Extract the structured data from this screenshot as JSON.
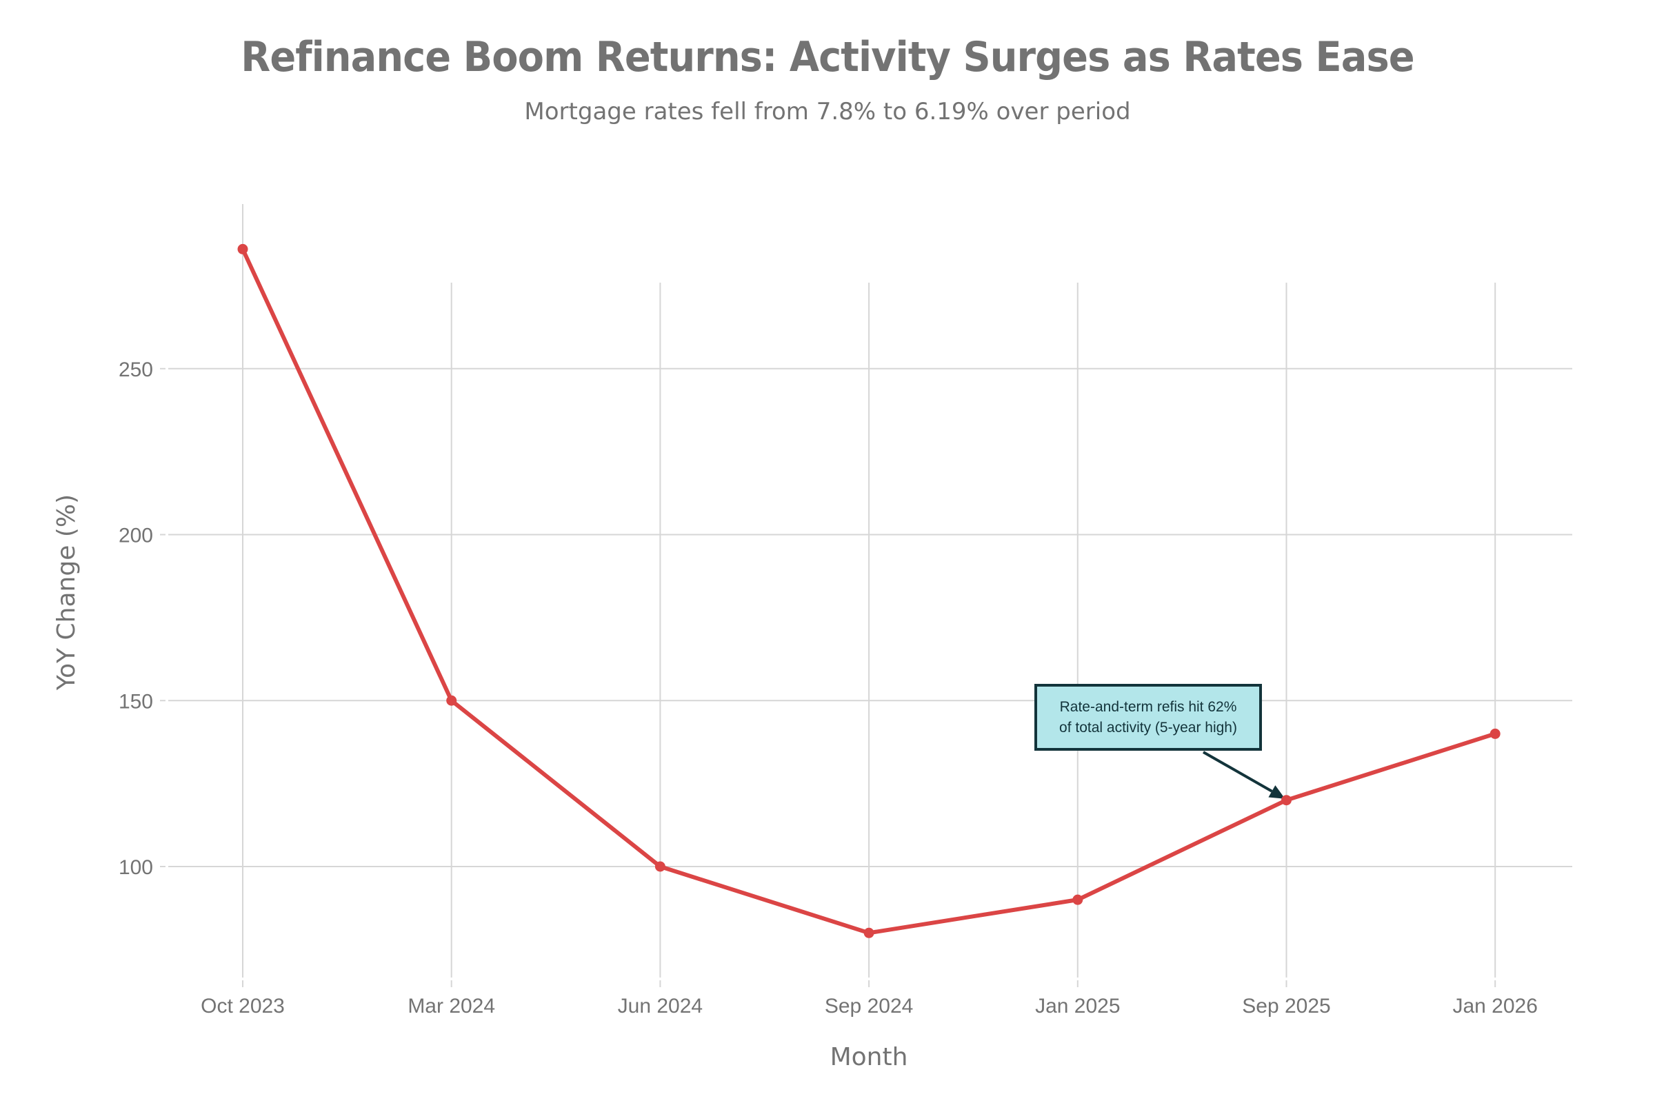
{
  "chart_data": {
    "type": "line",
    "title": "Refinance Boom Returns: Activity Surges as Rates Ease",
    "subtitle": "Mortgage rates fell from 7.8% to 6.19% over period",
    "xlabel": "Month",
    "ylabel": "YoY Change (%)",
    "categories": [
      "Oct 2023",
      "Mar 2024",
      "Jun 2024",
      "Sep 2024",
      "Jan 2025",
      "Sep 2025",
      "Jan 2026"
    ],
    "series": [
      {
        "name": "YoY Change (%)",
        "values": [
          286,
          150,
          100,
          80,
          90,
          120,
          140
        ],
        "color": "#db4545"
      }
    ],
    "yticks": [
      100,
      150,
      200,
      250
    ],
    "ylim": [
      67,
      300
    ],
    "grid": true,
    "legend": "none",
    "annotation": {
      "lines": [
        "Rate-and-term refis hit 62%",
        "of total activity (5-year high)"
      ],
      "target_category": "Sep 2025",
      "target_value": 120,
      "fill": "#b3e6ea",
      "border": "#13343b"
    }
  }
}
